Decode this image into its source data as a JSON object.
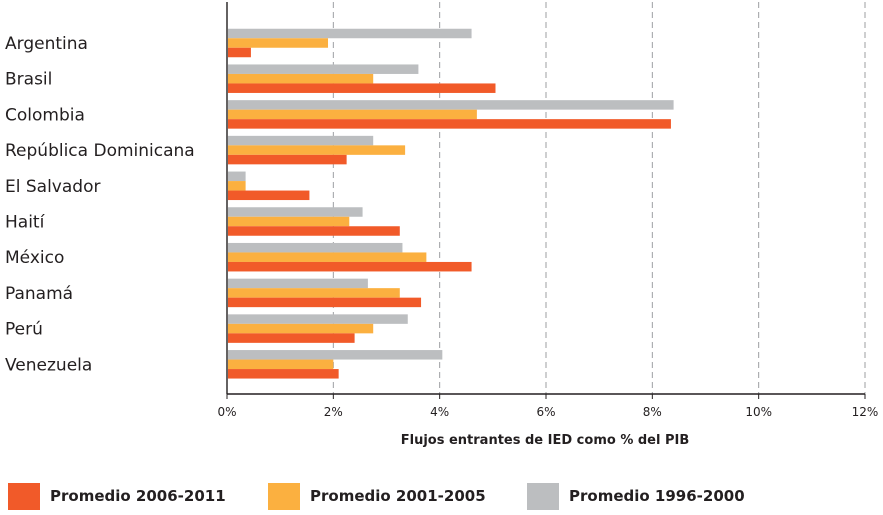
{
  "chart_data": {
    "type": "bar",
    "orientation": "horizontal",
    "title": "",
    "xlabel": "Flujos entrantes de IED como % del PIB",
    "ylabel": "",
    "xlim": [
      0,
      12
    ],
    "xticks": [
      0,
      2,
      4,
      6,
      8,
      10,
      12
    ],
    "xtick_labels": [
      "0%",
      "2%",
      "4%",
      "6%",
      "8%",
      "10%",
      "12%"
    ],
    "grid": true,
    "legend_position": "bottom",
    "categories": [
      "Argentina",
      "Brasil",
      "Colombia",
      "República Dominicana",
      "El Salvador",
      "Haití",
      "México",
      "Panamá",
      "Perú",
      "Venezuela"
    ],
    "series": [
      {
        "name": "Promedio 1996-2000",
        "color": "#bcbec0",
        "values": [
          4.6,
          3.6,
          8.4,
          2.75,
          0.35,
          2.55,
          3.3,
          2.65,
          3.4,
          4.05
        ]
      },
      {
        "name": "Promedio 2001-2005",
        "color": "#fbb040",
        "values": [
          1.9,
          2.75,
          4.7,
          3.35,
          0.35,
          2.3,
          3.75,
          3.25,
          2.75,
          2.0
        ]
      },
      {
        "name": "Promedio 2006-2011",
        "color": "#f15a29",
        "values": [
          0.45,
          5.05,
          8.35,
          2.25,
          1.55,
          3.25,
          4.6,
          3.65,
          2.4,
          2.1
        ]
      }
    ],
    "legend_order": [
      2,
      1,
      0
    ]
  }
}
